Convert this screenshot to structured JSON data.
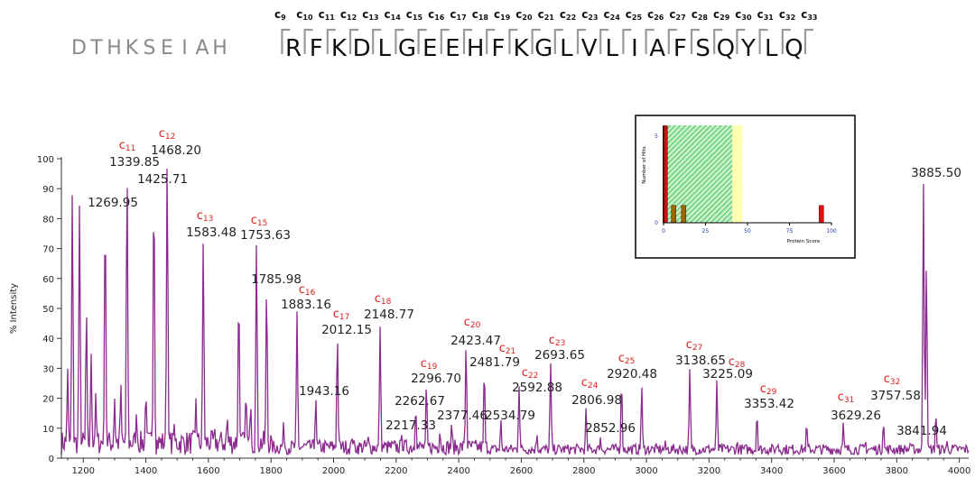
{
  "sequence": {
    "prefix": [
      "D",
      "T",
      "H",
      "K",
      "S",
      "E",
      "I",
      "A",
      "H"
    ],
    "main": [
      "R",
      "F",
      "K",
      "D",
      "L",
      "G",
      "E",
      "E",
      "H",
      "F",
      "K",
      "G",
      "L",
      "V",
      "L",
      "I",
      "A",
      "F",
      "S",
      "Q",
      "Y",
      "L",
      "Q"
    ],
    "fragments": [
      {
        "base": "c",
        "sub": "9"
      },
      {
        "base": "c",
        "sub": "10"
      },
      {
        "base": "c",
        "sub": "11"
      },
      {
        "base": "c",
        "sub": "12"
      },
      {
        "base": "c",
        "sub": "13"
      },
      {
        "base": "c",
        "sub": "14"
      },
      {
        "base": "c",
        "sub": "15"
      },
      {
        "base": "c",
        "sub": "16"
      },
      {
        "base": "c",
        "sub": "17"
      },
      {
        "base": "c",
        "sub": "18"
      },
      {
        "base": "c",
        "sub": "19"
      },
      {
        "base": "c",
        "sub": "20"
      },
      {
        "base": "c",
        "sub": "21"
      },
      {
        "base": "c",
        "sub": "22"
      },
      {
        "base": "c",
        "sub": "23"
      },
      {
        "base": "c",
        "sub": "24"
      },
      {
        "base": "c",
        "sub": "25"
      },
      {
        "base": "c",
        "sub": "26"
      },
      {
        "base": "c",
        "sub": "27"
      },
      {
        "base": "c",
        "sub": "28"
      },
      {
        "base": "c",
        "sub": "29"
      },
      {
        "base": "c",
        "sub": "30"
      },
      {
        "base": "c",
        "sub": "31"
      },
      {
        "base": "c",
        "sub": "32"
      },
      {
        "base": "c",
        "sub": "33"
      }
    ]
  },
  "colors": {
    "spectrum": "#8b2a8f",
    "ion_label": "#e0201b",
    "peak_label": "#222222",
    "axis": "#333333",
    "histogram_bar": "#cc1111",
    "histogram_bar_minor": "#996600",
    "histogram_green": "#22bb44",
    "histogram_yellow": "#ffffb0"
  },
  "chart_data": [
    {
      "type": "line",
      "title": "",
      "xlabel": "",
      "ylabel": "% Intensity",
      "xlim": [
        1130,
        4030
      ],
      "ylim": [
        0,
        100
      ],
      "x_ticks": [
        1200,
        1400,
        1600,
        1800,
        2000,
        2200,
        2400,
        2600,
        2800,
        3000,
        3200,
        3400,
        3600,
        3800,
        4000
      ],
      "y_ticks": [
        0,
        10,
        20,
        30,
        40,
        50,
        60,
        70,
        80,
        90,
        100
      ],
      "grid": false,
      "labeled_peaks": [
        {
          "mz": 1269.95,
          "intensity": 83,
          "label": "1269.95"
        },
        {
          "mz": 1339.85,
          "intensity": 96,
          "label": "1339.85",
          "ion": "c",
          "ion_sub": "11"
        },
        {
          "mz": 1425.71,
          "intensity": 91,
          "label": "1425.71"
        },
        {
          "mz": 1468.2,
          "intensity": 100,
          "label": "1468.20",
          "ion": "c",
          "ion_sub": "12"
        },
        {
          "mz": 1583.48,
          "intensity": 73,
          "label": "1583.48",
          "ion": "c",
          "ion_sub": "13"
        },
        {
          "mz": 1753.63,
          "intensity": 72,
          "label": "1753.63",
          "ion": "c",
          "ion_sub": "15"
        },
        {
          "mz": 1785.98,
          "intensity": 58,
          "label": "1785.98"
        },
        {
          "mz": 1883.16,
          "intensity": 49,
          "label": "1883.16",
          "ion": "c",
          "ion_sub": "16"
        },
        {
          "mz": 1943.16,
          "intensity": 20,
          "label": "1943.16"
        },
        {
          "mz": 2012.15,
          "intensity": 41,
          "label": "2012.15",
          "ion": "c",
          "ion_sub": "17"
        },
        {
          "mz": 2148.77,
          "intensity": 44,
          "label": "2148.77",
          "ion": "c",
          "ion_sub": "18"
        },
        {
          "mz": 2217.33,
          "intensity": 8,
          "label": "2217.33"
        },
        {
          "mz": 2262.67,
          "intensity": 17,
          "label": "2262.67"
        },
        {
          "mz": 2296.7,
          "intensity": 25,
          "label": "2296.70",
          "ion": "c",
          "ion_sub": "19"
        },
        {
          "mz": 2377.46,
          "intensity": 12,
          "label": "2377.46"
        },
        {
          "mz": 2423.47,
          "intensity": 38,
          "label": "2423.47",
          "ion": "c",
          "ion_sub": "20"
        },
        {
          "mz": 2481.79,
          "intensity": 30,
          "label": "2481.79",
          "ion": "c",
          "ion_sub": "21"
        },
        {
          "mz": 2534.79,
          "intensity": 13,
          "label": "2534.79"
        },
        {
          "mz": 2592.88,
          "intensity": 24,
          "label": "2592.88",
          "ion": "c",
          "ion_sub": "22"
        },
        {
          "mz": 2693.65,
          "intensity": 32,
          "label": "2693.65",
          "ion": "c",
          "ion_sub": "23"
        },
        {
          "mz": 2806.98,
          "intensity": 17,
          "label": "2806.98",
          "ion": "c",
          "ion_sub": "24"
        },
        {
          "mz": 2852.96,
          "intensity": 7,
          "label": "2852.96"
        },
        {
          "mz": 2920.48,
          "intensity": 26,
          "label": "2920.48",
          "ion": "c",
          "ion_sub": "25"
        },
        {
          "mz": 3138.65,
          "intensity": 30,
          "label": "3138.65",
          "ion": "c",
          "ion_sub": "27"
        },
        {
          "mz": 3225.09,
          "intensity": 26,
          "label": "3225.09",
          "ion": "c",
          "ion_sub": "28"
        },
        {
          "mz": 3353.42,
          "intensity": 15,
          "label": "3353.42",
          "ion": "c",
          "ion_sub": "29"
        },
        {
          "mz": 3629.26,
          "intensity": 12,
          "label": "3629.26",
          "ion": "c",
          "ion_sub": "31"
        },
        {
          "mz": 3757.58,
          "intensity": 12,
          "label": "3757.58",
          "ion": "c",
          "ion_sub": "32"
        },
        {
          "mz": 3841.94,
          "intensity": 5,
          "label": "3841.94"
        },
        {
          "mz": 3885.5,
          "intensity": 92,
          "label": "3885.50"
        }
      ],
      "unlabeled_peaks": [
        {
          "mz": 1165,
          "intensity": 89
        },
        {
          "mz": 1188,
          "intensity": 85
        },
        {
          "mz": 1150,
          "intensity": 30
        },
        {
          "mz": 1210,
          "intensity": 50
        },
        {
          "mz": 1225,
          "intensity": 35
        },
        {
          "mz": 1240,
          "intensity": 22
        },
        {
          "mz": 1300,
          "intensity": 20
        },
        {
          "mz": 1320,
          "intensity": 25
        },
        {
          "mz": 1370,
          "intensity": 15
        },
        {
          "mz": 1400,
          "intensity": 22
        },
        {
          "mz": 1490,
          "intensity": 12
        },
        {
          "mz": 1560,
          "intensity": 20
        },
        {
          "mz": 1620,
          "intensity": 10
        },
        {
          "mz": 1660,
          "intensity": 14
        },
        {
          "mz": 1697,
          "intensity": 55
        },
        {
          "mz": 1720,
          "intensity": 22
        },
        {
          "mz": 1735,
          "intensity": 18
        },
        {
          "mz": 1840,
          "intensity": 12
        },
        {
          "mz": 2060,
          "intensity": 7
        },
        {
          "mz": 2110,
          "intensity": 8
        },
        {
          "mz": 2340,
          "intensity": 9
        },
        {
          "mz": 2650,
          "intensity": 8
        },
        {
          "mz": 2985,
          "intensity": 24
        },
        {
          "mz": 3060,
          "intensity": 6
        },
        {
          "mz": 3290,
          "intensity": 6
        },
        {
          "mz": 3420,
          "intensity": 5
        },
        {
          "mz": 3512,
          "intensity": 12
        },
        {
          "mz": 3700,
          "intensity": 6
        },
        {
          "mz": 3895,
          "intensity": 65
        },
        {
          "mz": 3925,
          "intensity": 15
        },
        {
          "mz": 3960,
          "intensity": 6
        }
      ]
    },
    {
      "type": "bar",
      "title": "",
      "xlabel": "Protein Score",
      "ylabel": "Number of Hits",
      "xlim": [
        0,
        100
      ],
      "ylim": [
        0,
        5
      ],
      "x_ticks": [
        0,
        25,
        50,
        75,
        100
      ],
      "y_ticks": [
        0,
        5
      ],
      "significance_threshold_band": [
        0,
        41
      ],
      "yellow_band": [
        41,
        47
      ],
      "bars": [
        {
          "score": 1,
          "hits": 5.6,
          "color": "#cc1111"
        },
        {
          "score": 6,
          "hits": 1,
          "color": "#996600"
        },
        {
          "score": 12,
          "hits": 1,
          "color": "#996600"
        },
        {
          "score": 94,
          "hits": 1,
          "color": "#dd1111"
        }
      ]
    }
  ]
}
